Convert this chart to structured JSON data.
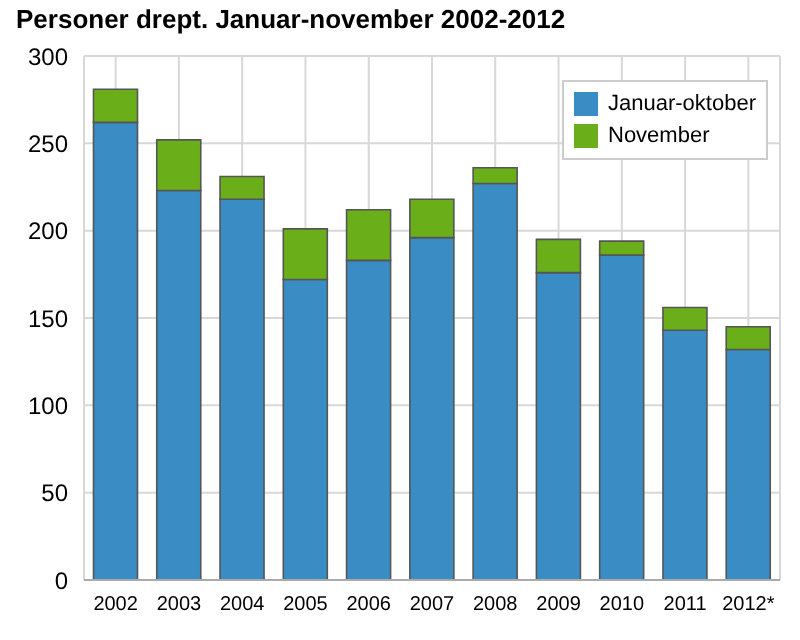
{
  "chart_data": {
    "type": "bar",
    "title": "Personer drept. Januar-november 2002-2012",
    "categories": [
      "2002",
      "2003",
      "2004",
      "2005",
      "2006",
      "2007",
      "2008",
      "2009",
      "2010",
      "2011",
      "2012*"
    ],
    "stacked": true,
    "series": [
      {
        "name": "Januar-oktober",
        "color": "#3a8dc4",
        "values": [
          262,
          223,
          218,
          172,
          183,
          196,
          227,
          176,
          186,
          143,
          132
        ]
      },
      {
        "name": "November",
        "color": "#6aaf1a",
        "values": [
          19,
          29,
          13,
          29,
          29,
          22,
          9,
          19,
          8,
          13,
          13
        ]
      }
    ],
    "ylim": [
      0,
      300
    ],
    "yticks": [
      0,
      50,
      100,
      150,
      200,
      250,
      300
    ],
    "grid": true,
    "legend": "top right"
  }
}
